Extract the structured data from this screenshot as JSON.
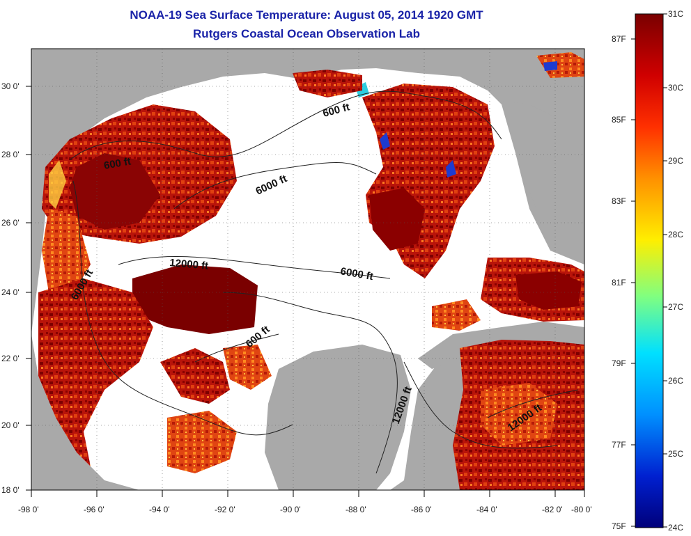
{
  "title": "NOAA-19 Sea Surface Temperature:  August 05, 2014 1920 GMT",
  "subtitle": "Rutgers Coastal Ocean Observation Lab",
  "map": {
    "lon_range": [
      -98,
      -80
    ],
    "lat_range": [
      18,
      31
    ],
    "x_tick_labels": [
      "-98 0'",
      "-96 0'",
      "-94 0'",
      "-92 0'",
      "-90 0'",
      "-88 0'",
      "-86 0'",
      "-84 0'",
      "-82 0'",
      "-80 0'"
    ],
    "y_tick_labels": [
      "30 0'",
      "28 0'",
      "26 0'",
      "24 0'",
      "22 0'",
      "20 0'",
      "18 0'"
    ],
    "contour_labels": [
      "600 ft",
      "600 ft",
      "6000 ft",
      "6000 ft",
      "12000 ft",
      "6000 ft",
      "600 ft",
      "12000 ft",
      "12000 ft"
    ],
    "grid": "dotted",
    "colors": {
      "land": "#a9a9a9",
      "no_data": "#ffffff",
      "hot": "#8b0000",
      "warm": "#d42a10",
      "mid": "#ff6a10",
      "cool": "#2040d0"
    }
  },
  "colorbar": {
    "celsius_labels": [
      "31C",
      "30C",
      "29C",
      "28C",
      "27C",
      "26C",
      "25C",
      "24C"
    ],
    "fahrenheit_labels": [
      "87F",
      "85F",
      "83F",
      "81F",
      "79F",
      "77F",
      "75F"
    ],
    "colors": [
      "#800000",
      "#ff0000",
      "#ff8000",
      "#ffff00",
      "#00ffff",
      "#0080ff",
      "#0000a0"
    ]
  }
}
